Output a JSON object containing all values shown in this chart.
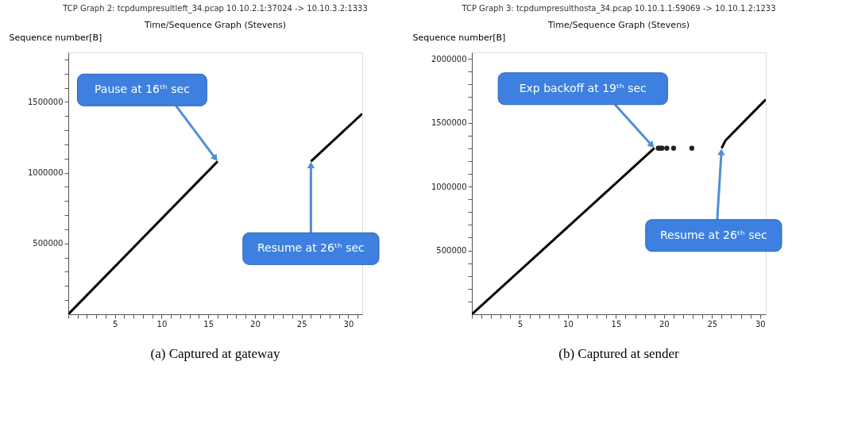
{
  "chart_data": [
    {
      "type": "line",
      "title": "TCP Graph 2: tcpdumpresultleft_34.pcap 10.10.2.1:37024 -> 10.10.3.2:1333",
      "subtitle": "Time/Sequence Graph (Stevens)",
      "ylabel": "Sequence number[B]",
      "series": [
        {
          "color": "#000000",
          "x": [
            0,
            16
          ],
          "values": [
            0,
            1080000
          ]
        },
        {
          "color": "#000000",
          "x": [
            26,
            31.5
          ],
          "values": [
            1080000,
            1417000
          ]
        }
      ],
      "xlim": [
        0,
        31.5
      ],
      "ylim": [
        0,
        1850000
      ],
      "xticks": [
        {
          "value": 0,
          "label": null
        },
        {
          "value": 1,
          "label": null
        },
        {
          "value": 2,
          "label": null
        },
        {
          "value": 3,
          "label": null
        },
        {
          "value": 4,
          "label": null
        },
        5,
        {
          "value": 6,
          "label": null
        },
        {
          "value": 7,
          "label": null
        },
        {
          "value": 8,
          "label": null
        },
        {
          "value": 9,
          "label": null
        },
        10,
        {
          "value": 11,
          "label": null
        },
        {
          "value": 12,
          "label": null
        },
        {
          "value": 13,
          "label": null
        },
        {
          "value": 14,
          "label": null
        },
        15,
        {
          "value": 16,
          "label": null
        },
        {
          "value": 17,
          "label": null
        },
        {
          "value": 18,
          "label": null
        },
        {
          "value": 19,
          "label": null
        },
        20,
        {
          "value": 21,
          "label": null
        },
        {
          "value": 22,
          "label": null
        },
        {
          "value": 23,
          "label": null
        },
        {
          "value": 24,
          "label": null
        },
        25,
        {
          "value": 26,
          "label": null
        },
        {
          "value": 27,
          "label": null
        },
        {
          "value": 28,
          "label": null
        },
        {
          "value": 29,
          "label": null
        },
        30,
        {
          "value": 31,
          "label": null
        }
      ],
      "yticks": [
        {
          "value": 100000,
          "label": null
        },
        {
          "value": 200000,
          "label": null
        },
        {
          "value": 300000,
          "label": null
        },
        {
          "value": 400000,
          "label": null
        },
        500000,
        {
          "value": 600000,
          "label": null
        },
        {
          "value": 700000,
          "label": null
        },
        {
          "value": 800000,
          "label": null
        },
        {
          "value": 900000,
          "label": null
        },
        1000000,
        {
          "value": 1100000,
          "label": null
        },
        {
          "value": 1200000,
          "label": null
        },
        {
          "value": 1300000,
          "label": null
        },
        {
          "value": 1400000,
          "label": null
        },
        1500000,
        {
          "value": 1600000,
          "label": null
        },
        {
          "value": 1700000,
          "label": null
        },
        {
          "value": 1800000,
          "label": null
        }
      ],
      "grid": false,
      "marker": "none",
      "annotations": [
        {
          "text": "Pause at 16ᵗʰ sec",
          "x": 16,
          "y": 1080000
        },
        {
          "text": "Resume at 26ᵗʰ sec",
          "x": 26,
          "y": 1080000
        },
        "(a) Captured at gateway"
      ]
    },
    {
      "type": "line",
      "title": "TCP Graph 3: tcpdumpresulthosta_34.pcap 10.10.1.1:59069 -> 10.10.1.2:1233",
      "subtitle": "Time/Sequence Graph (Stevens)",
      "ylabel": "Sequence number[B]",
      "series": [
        {
          "color": "#000000",
          "x": [
            0,
            19
          ],
          "values": [
            0,
            1300000
          ]
        },
        {
          "type": "scatter",
          "marker": "circle",
          "color": "#222222",
          "x": [
            19.4,
            19.6,
            19.8,
            20.3,
            21,
            22.9
          ],
          "values": [
            1300000,
            1300000,
            1300000,
            1300000,
            1300000,
            1300000
          ]
        },
        {
          "color": "#000000",
          "x": [
            26,
            26.4,
            30.6
          ],
          "values": [
            1300000,
            1360000,
            1682000
          ]
        }
      ],
      "xlim": [
        0,
        30.6
      ],
      "ylim": [
        0,
        2050000
      ],
      "xticks": [
        {
          "value": 0,
          "label": null
        },
        {
          "value": 1,
          "label": null
        },
        {
          "value": 2,
          "label": null
        },
        {
          "value": 3,
          "label": null
        },
        {
          "value": 4,
          "label": null
        },
        5,
        {
          "value": 6,
          "label": null
        },
        {
          "value": 7,
          "label": null
        },
        {
          "value": 8,
          "label": null
        },
        {
          "value": 9,
          "label": null
        },
        10,
        {
          "value": 11,
          "label": null
        },
        {
          "value": 12,
          "label": null
        },
        {
          "value": 13,
          "label": null
        },
        {
          "value": 14,
          "label": null
        },
        15,
        {
          "value": 16,
          "label": null
        },
        {
          "value": 17,
          "label": null
        },
        {
          "value": 18,
          "label": null
        },
        {
          "value": 19,
          "label": null
        },
        20,
        {
          "value": 21,
          "label": null
        },
        {
          "value": 22,
          "label": null
        },
        {
          "value": 23,
          "label": null
        },
        {
          "value": 24,
          "label": null
        },
        25,
        {
          "value": 26,
          "label": null
        },
        {
          "value": 27,
          "label": null
        },
        {
          "value": 28,
          "label": null
        },
        {
          "value": 29,
          "label": null
        },
        30
      ],
      "yticks": [
        {
          "value": 100000,
          "label": null
        },
        {
          "value": 200000,
          "label": null
        },
        {
          "value": 300000,
          "label": null
        },
        {
          "value": 400000,
          "label": null
        },
        500000,
        {
          "value": 600000,
          "label": null
        },
        {
          "value": 700000,
          "label": null
        },
        {
          "value": 800000,
          "label": null
        },
        {
          "value": 900000,
          "label": null
        },
        1000000,
        {
          "value": 1100000,
          "label": null
        },
        {
          "value": 1200000,
          "label": null
        },
        {
          "value": 1300000,
          "label": null
        },
        {
          "value": 1400000,
          "label": null
        },
        1500000,
        {
          "value": 1600000,
          "label": null
        },
        {
          "value": 1700000,
          "label": null
        },
        {
          "value": 1800000,
          "label": null
        },
        {
          "value": 1900000,
          "label": null
        },
        2000000
      ],
      "grid": false,
      "marker": "none",
      "annotations": [
        {
          "text": "Exp backoff at 19ᵗʰ sec",
          "x": 19,
          "y": 1300000
        },
        {
          "text": "Resume at 26ᵗʰ sec",
          "x": 26,
          "y": 1300000
        },
        "(b) Captured at sender"
      ]
    }
  ]
}
